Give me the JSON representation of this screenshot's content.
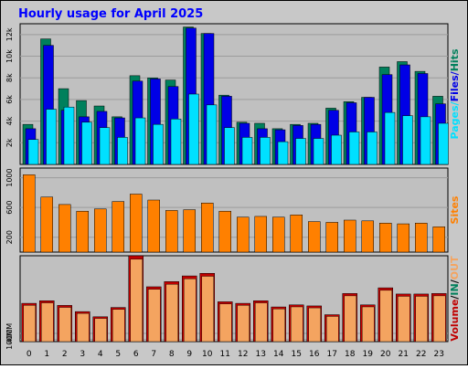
{
  "title": "Hourly usage for April 2025",
  "colors": {
    "background": "#C8C8C8",
    "plot_bg": "#C0C0C0",
    "title": "#0000FF",
    "hits": "#00805C",
    "files": "#0000E6",
    "pages": "#00E0FF",
    "visits": "#FF8000",
    "in": "#F4A460",
    "out": "#C00000"
  },
  "chart_data": [
    {
      "type": "bar",
      "title": "Hourly usage for April 2025",
      "categories": [
        "0",
        "1",
        "2",
        "3",
        "4",
        "5",
        "6",
        "7",
        "8",
        "9",
        "10",
        "11",
        "12",
        "13",
        "14",
        "15",
        "16",
        "17",
        "18",
        "19",
        "20",
        "21",
        "22",
        "23"
      ],
      "ylabel_parts": [
        "Pages",
        "Files",
        "Hits"
      ],
      "yticks": [
        "2k",
        "4k",
        "6k",
        "8k",
        "10k",
        "12k"
      ],
      "ylim": [
        0,
        13000
      ],
      "series": [
        {
          "name": "Hits",
          "values": [
            3700,
            11600,
            7000,
            5900,
            5400,
            4400,
            8200,
            8000,
            7800,
            12700,
            12100,
            6400,
            3900,
            3800,
            3300,
            3700,
            3800,
            5200,
            5800,
            6200,
            9000,
            9500,
            8600,
            6300
          ]
        },
        {
          "name": "Files",
          "values": [
            3300,
            11000,
            5000,
            4400,
            4900,
            4300,
            7700,
            7900,
            7200,
            12600,
            12100,
            6300,
            3800,
            3300,
            3200,
            3600,
            3700,
            5000,
            5700,
            6200,
            8300,
            9200,
            8400,
            5600
          ]
        },
        {
          "name": "Pages",
          "values": [
            2300,
            5100,
            5300,
            3900,
            3400,
            2500,
            4300,
            3700,
            4200,
            6500,
            5500,
            3400,
            2500,
            2500,
            2100,
            2400,
            2400,
            2700,
            3000,
            3000,
            4800,
            4500,
            4400,
            3800
          ]
        }
      ]
    },
    {
      "type": "bar",
      "categories": [
        "0",
        "1",
        "2",
        "3",
        "4",
        "5",
        "6",
        "7",
        "8",
        "9",
        "10",
        "11",
        "12",
        "13",
        "14",
        "15",
        "16",
        "17",
        "18",
        "19",
        "20",
        "21",
        "22",
        "23"
      ],
      "ylabel_parts": [
        "Sites"
      ],
      "yticks": [
        "200",
        "600",
        "1000"
      ],
      "ylim": [
        0,
        1130
      ],
      "series": [
        {
          "name": "Sites",
          "values": [
            1040,
            740,
            640,
            550,
            580,
            680,
            780,
            700,
            560,
            570,
            660,
            550,
            470,
            480,
            470,
            500,
            410,
            400,
            430,
            420,
            390,
            380,
            390,
            340
          ]
        }
      ]
    },
    {
      "type": "bar",
      "categories": [
        "0",
        "1",
        "2",
        "3",
        "4",
        "5",
        "6",
        "7",
        "8",
        "9",
        "10",
        "11",
        "12",
        "13",
        "14",
        "15",
        "16",
        "17",
        "18",
        "19",
        "20",
        "21",
        "22",
        "23"
      ],
      "ylabel_parts": [
        "Volume",
        "IN",
        "OUT"
      ],
      "ylabel_sep": "/",
      "yticks": [
        "100M",
        "400M"
      ],
      "ylim": [
        0,
        830
      ],
      "series": [
        {
          "name": "Volume",
          "values": [
            370,
            395,
            350,
            290,
            240,
            330,
            830,
            530,
            580,
            635,
            660,
            385,
            370,
            395,
            335,
            355,
            345,
            260,
            465,
            355,
            520,
            460,
            460,
            465
          ]
        }
      ]
    }
  ]
}
